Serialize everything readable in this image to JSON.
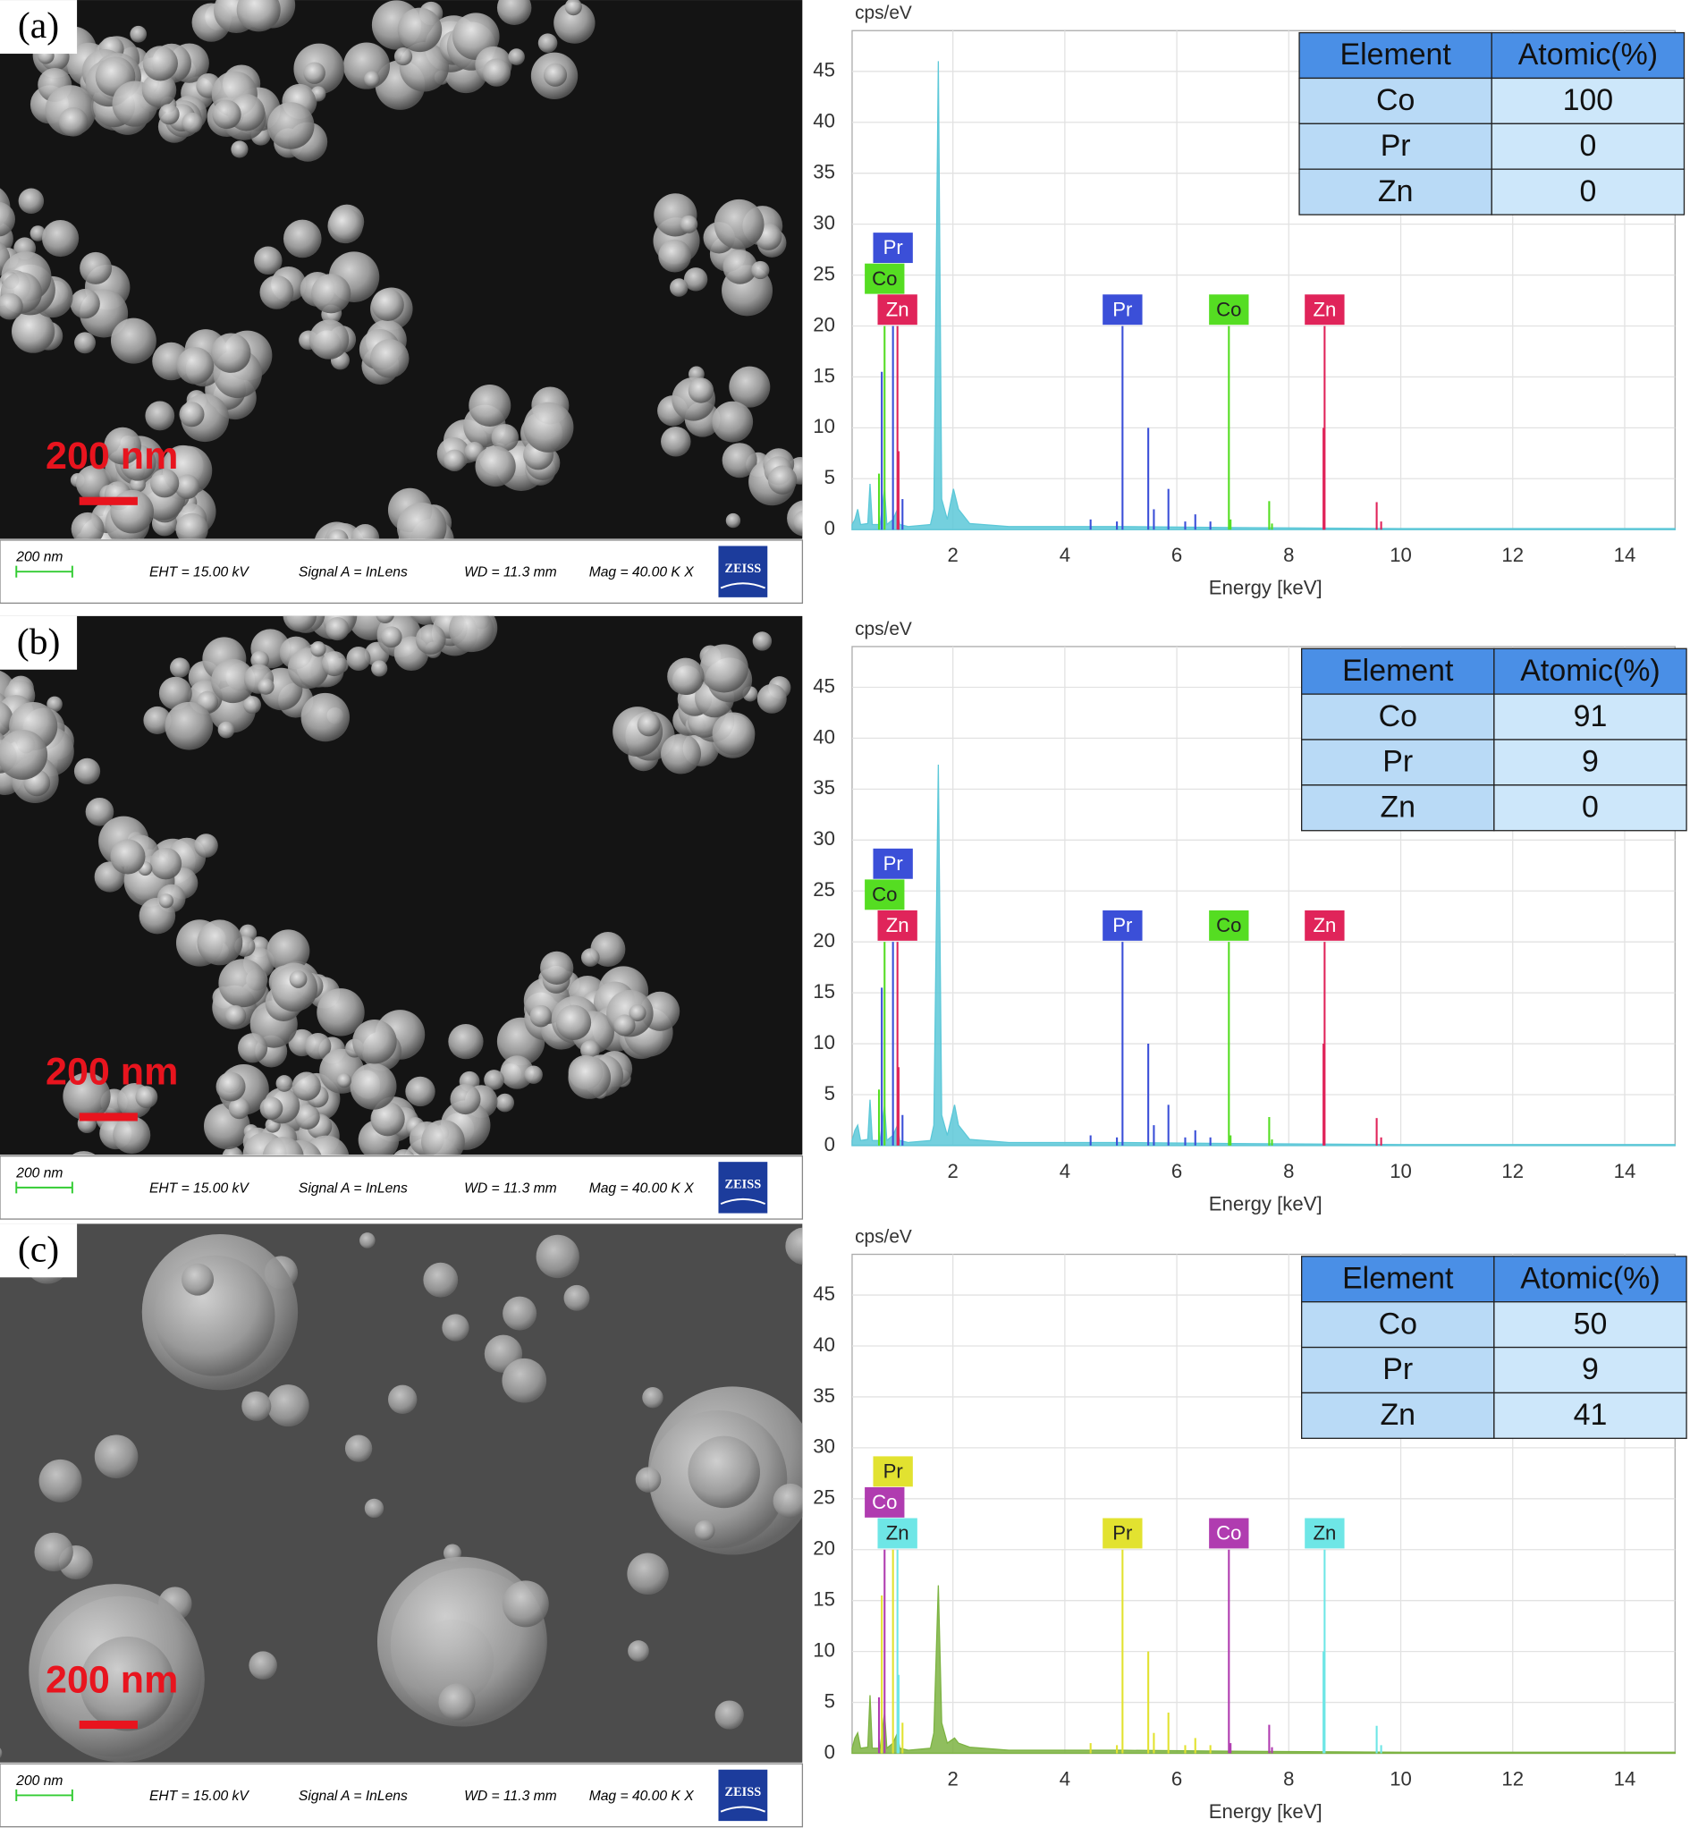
{
  "panels": [
    {
      "label": "(a)",
      "scale_text": "200 nm",
      "info": {
        "scale": "200 nm",
        "eht": "EHT = 15.00 kV",
        "signal": "Signal A = InLens",
        "wd": "WD = 11.3 mm",
        "mag": "Mag =  40.00 K X",
        "logo": "ZEISS"
      },
      "table": {
        "header": [
          "Element",
          "Atomic(%)"
        ],
        "rows": [
          [
            "Co",
            100
          ],
          [
            "Pr",
            0
          ],
          [
            "Zn",
            0
          ]
        ]
      }
    },
    {
      "label": "(b)",
      "scale_text": "200 nm",
      "info": {
        "scale": "200 nm",
        "eht": "EHT = 15.00 kV",
        "signal": "Signal A = InLens",
        "wd": "WD = 11.3 mm",
        "mag": "Mag =  40.00 K X",
        "logo": "ZEISS"
      },
      "table": {
        "header": [
          "Element",
          "Atomic(%)"
        ],
        "rows": [
          [
            "Co",
            91
          ],
          [
            "Pr",
            9
          ],
          [
            "Zn",
            0
          ]
        ]
      }
    },
    {
      "label": "(c)",
      "scale_text": "200 nm",
      "info": {
        "scale": "200 nm",
        "eht": "EHT = 15.00 kV",
        "signal": "Signal A = InLens",
        "wd": "WD = 11.3 mm",
        "mag": "Mag =  40.00 K X",
        "logo": "ZEISS"
      },
      "table": {
        "header": [
          "Element",
          "Atomic(%)"
        ],
        "rows": [
          [
            "Co",
            50
          ],
          [
            "Pr",
            9
          ],
          [
            "Zn",
            41
          ]
        ]
      }
    }
  ],
  "chart_data": [
    {
      "type": "spectrum",
      "y_label": "cps/eV",
      "x_label": "Energy [keV]",
      "xlim": [
        0.2,
        14.9
      ],
      "ylim": [
        0,
        49
      ],
      "xticks": [
        2,
        4,
        6,
        8,
        10,
        12,
        14
      ],
      "yticks": [
        0,
        5,
        10,
        15,
        20,
        25,
        30,
        35,
        40,
        45
      ],
      "grid": true,
      "spectrum": {
        "color": "#5cc8d8",
        "x": [
          0.2,
          0.25,
          0.3,
          0.35,
          0.48,
          0.52,
          0.56,
          0.7,
          0.78,
          0.82,
          0.93,
          1.01,
          1.05,
          1.2,
          1.6,
          1.66,
          1.74,
          1.8,
          1.9,
          2.01,
          2.1,
          2.3,
          3,
          5,
          7,
          10,
          14.9
        ],
        "values": [
          0.5,
          1,
          2,
          0.5,
          0.6,
          4.5,
          0.5,
          0.5,
          4,
          0.5,
          1,
          2,
          0.5,
          0.3,
          0.5,
          2,
          46,
          3,
          1,
          4,
          2,
          0.6,
          0.3,
          0.3,
          0.2,
          0.1,
          0.1
        ]
      },
      "lines": [
        {
          "name": "Pr",
          "color": "#3b4fd8",
          "x": [
            0.73,
            0.93,
            1.1,
            4.46,
            4.93,
            5.03,
            5.49,
            5.59,
            5.85,
            6.15,
            6.33,
            6.6
          ],
          "values": [
            15.5,
            20,
            3,
            1,
            0.8,
            20,
            10,
            2,
            4,
            0.8,
            1.5,
            0.8
          ]
        },
        {
          "name": "Co",
          "color": "#55dd22",
          "x": [
            0.68,
            0.78,
            6.93,
            6.96,
            7.65,
            7.7
          ],
          "values": [
            5.5,
            20,
            20,
            1,
            2.8,
            0.6
          ]
        },
        {
          "name": "Zn",
          "color": "#e0245a",
          "x": [
            1.01,
            1.03,
            8.64,
            8.62,
            9.57,
            9.65
          ],
          "values": [
            20,
            7.7,
            20,
            10,
            2.7,
            0.8
          ]
        }
      ]
    },
    {
      "type": "spectrum",
      "y_label": "cps/eV",
      "x_label": "Energy [keV]",
      "xlim": [
        0.2,
        14.9
      ],
      "ylim": [
        0,
        49
      ],
      "xticks": [
        2,
        4,
        6,
        8,
        10,
        12,
        14
      ],
      "yticks": [
        0,
        5,
        10,
        15,
        20,
        25,
        30,
        35,
        40,
        45
      ],
      "grid": true,
      "spectrum": {
        "color": "#5cc8d8",
        "x": [
          0.2,
          0.25,
          0.3,
          0.35,
          0.48,
          0.52,
          0.56,
          0.7,
          0.78,
          0.82,
          0.93,
          1.01,
          1.05,
          1.2,
          1.6,
          1.66,
          1.74,
          1.8,
          1.9,
          2.03,
          2.1,
          2.3,
          3,
          5,
          7,
          10,
          14.9
        ],
        "values": [
          0.5,
          1.5,
          2,
          0.5,
          0.6,
          4.5,
          0.5,
          0.5,
          4,
          0.5,
          1,
          2,
          0.5,
          0.3,
          0.5,
          2,
          37.4,
          3,
          1,
          4,
          2,
          0.6,
          0.3,
          0.3,
          0.2,
          0.1,
          0.1
        ]
      },
      "lines": [
        {
          "name": "Pr",
          "color": "#3b4fd8",
          "x": [
            0.73,
            0.93,
            1.1,
            4.46,
            4.93,
            5.03,
            5.49,
            5.59,
            5.85,
            6.15,
            6.33,
            6.6
          ],
          "values": [
            15.5,
            20,
            3,
            1,
            0.8,
            20,
            10,
            2,
            4,
            0.8,
            1.5,
            0.8
          ]
        },
        {
          "name": "Co",
          "color": "#55dd22",
          "x": [
            0.68,
            0.78,
            6.93,
            6.96,
            7.65,
            7.7
          ],
          "values": [
            5.5,
            20,
            20,
            1,
            2.8,
            0.6
          ]
        },
        {
          "name": "Zn",
          "color": "#e0245a",
          "x": [
            1.01,
            1.03,
            8.64,
            8.62,
            9.57,
            9.65
          ],
          "values": [
            20,
            7.7,
            20,
            10,
            2.7,
            0.8
          ]
        }
      ]
    },
    {
      "type": "spectrum",
      "y_label": "cps/eV",
      "x_label": "Energy [keV]",
      "xlim": [
        0.2,
        14.9
      ],
      "ylim": [
        0,
        49
      ],
      "xticks": [
        2,
        4,
        6,
        8,
        10,
        12,
        14
      ],
      "yticks": [
        0,
        5,
        10,
        15,
        20,
        25,
        30,
        35,
        40,
        45
      ],
      "grid": true,
      "spectrum": {
        "color": "#7cb342",
        "x": [
          0.2,
          0.25,
          0.3,
          0.35,
          0.48,
          0.52,
          0.56,
          0.7,
          0.78,
          0.82,
          0.93,
          1.01,
          1.05,
          1.2,
          1.6,
          1.66,
          1.74,
          1.8,
          1.9,
          2.03,
          2.1,
          2.3,
          3,
          5,
          7,
          10,
          14.9
        ],
        "values": [
          0.5,
          1.5,
          2,
          0.5,
          0.6,
          5.7,
          0.5,
          0.5,
          4,
          0.5,
          1,
          2,
          0.5,
          0.3,
          0.5,
          2,
          16.5,
          3,
          1,
          1.5,
          1,
          0.6,
          0.3,
          0.3,
          0.2,
          0.1,
          0.1
        ]
      },
      "lines": [
        {
          "name": "Pr",
          "color": "#e2e230",
          "x": [
            0.73,
            0.93,
            1.1,
            4.46,
            4.93,
            5.03,
            5.49,
            5.59,
            5.85,
            6.15,
            6.33,
            6.6
          ],
          "values": [
            15.5,
            20,
            3,
            1,
            0.8,
            20,
            10,
            2,
            4,
            0.8,
            1.5,
            0.8
          ]
        },
        {
          "name": "Co",
          "color": "#b03cb0",
          "x": [
            0.68,
            0.78,
            6.93,
            6.96,
            7.65,
            7.7
          ],
          "values": [
            5.5,
            20,
            20,
            1,
            2.8,
            0.6
          ]
        },
        {
          "name": "Zn",
          "color": "#6ee6e6",
          "x": [
            1.01,
            1.03,
            8.64,
            8.62,
            9.57,
            9.65
          ],
          "values": [
            20,
            7.7,
            20,
            10,
            2.7,
            0.8
          ]
        }
      ]
    }
  ]
}
